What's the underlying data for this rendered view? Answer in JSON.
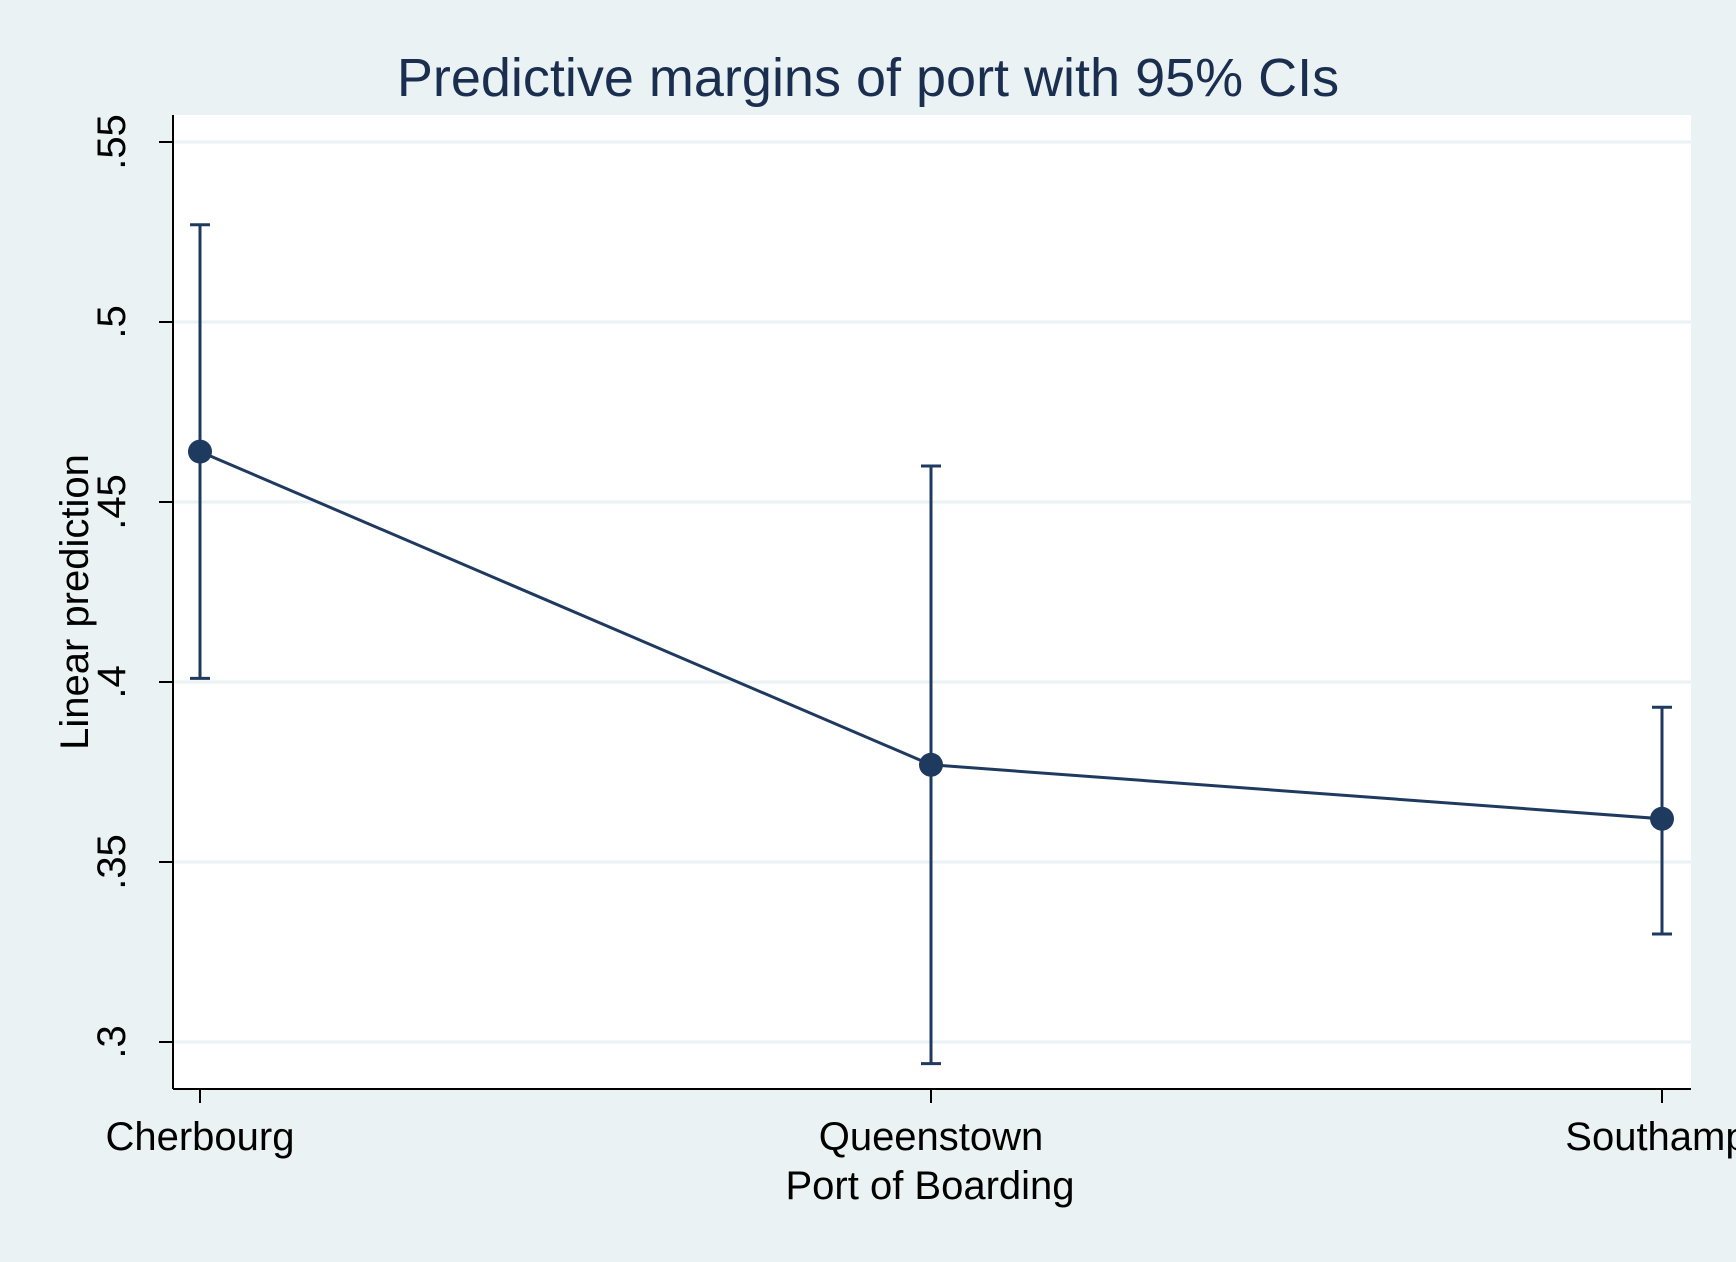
{
  "chart_data": {
    "type": "line",
    "title": "Predictive margins of port with 95% CIs",
    "xlabel": "Port of Boarding",
    "ylabel": "Linear prediction",
    "categories": [
      "Cherbourg",
      "Queenstown",
      "Southampt"
    ],
    "series": [
      {
        "values": [
          0.464,
          0.377,
          0.362
        ],
        "ci_lower": [
          0.401,
          0.294,
          0.33
        ],
        "ci_upper": [
          0.527,
          0.46,
          0.393
        ]
      }
    ],
    "ylim": [
      0.287,
      0.557
    ],
    "yticks": [
      0.3,
      0.35,
      0.4,
      0.45,
      0.5,
      0.55
    ],
    "ytick_labels": [
      ".3",
      ".35",
      ".4",
      ".45",
      ".5",
      ".55"
    ],
    "grid": true,
    "colors": {
      "background": "#eaf2f3",
      "plot_area": "#ffffff",
      "series": "#1f3a5f",
      "gridline": "#eaf2f3",
      "title": "#1a2e4f"
    }
  }
}
